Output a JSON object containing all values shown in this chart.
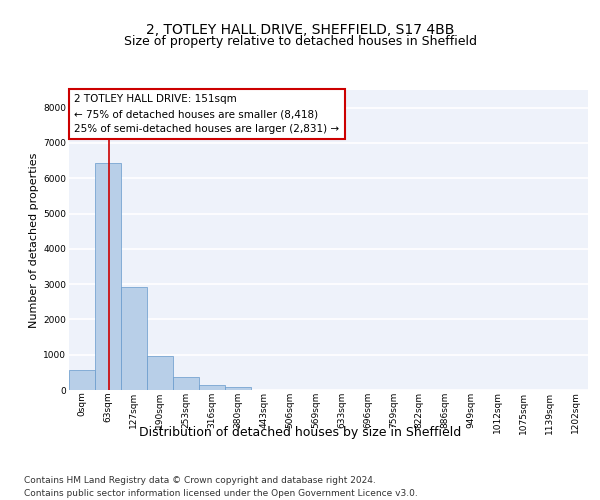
{
  "title_line1": "2, TOTLEY HALL DRIVE, SHEFFIELD, S17 4BB",
  "title_line2": "Size of property relative to detached houses in Sheffield",
  "xlabel": "Distribution of detached houses by size in Sheffield",
  "ylabel": "Number of detached properties",
  "bar_values": [
    580,
    6420,
    2920,
    970,
    360,
    150,
    80,
    0,
    0,
    0,
    0,
    0,
    0,
    0,
    0,
    0,
    0,
    0,
    0,
    0
  ],
  "bar_labels": [
    "0sqm",
    "63sqm",
    "127sqm",
    "190sqm",
    "253sqm",
    "316sqm",
    "380sqm",
    "443sqm",
    "506sqm",
    "569sqm",
    "633sqm",
    "696sqm",
    "759sqm",
    "822sqm",
    "886sqm",
    "949sqm",
    "1012sqm",
    "1075sqm",
    "1139sqm",
    "1202sqm"
  ],
  "bar_color": "#b8cfe8",
  "bar_edge_color": "#6699cc",
  "background_color": "#eef2fa",
  "grid_color": "#ffffff",
  "vline_x": 1.55,
  "vline_color": "#cc0000",
  "annotation_text": "2 TOTLEY HALL DRIVE: 151sqm\n← 75% of detached houses are smaller (8,418)\n25% of semi-detached houses are larger (2,831) →",
  "annotation_box_color": "#cc0000",
  "ylim": [
    0,
    8500
  ],
  "yticks": [
    0,
    1000,
    2000,
    3000,
    4000,
    5000,
    6000,
    7000,
    8000
  ],
  "footer_text": "Contains HM Land Registry data © Crown copyright and database right 2024.\nContains public sector information licensed under the Open Government Licence v3.0.",
  "title_fontsize": 10,
  "subtitle_fontsize": 9,
  "xlabel_fontsize": 9,
  "ylabel_fontsize": 8,
  "tick_fontsize": 6.5,
  "annotation_fontsize": 7.5,
  "footer_fontsize": 6.5,
  "num_bars": 20
}
